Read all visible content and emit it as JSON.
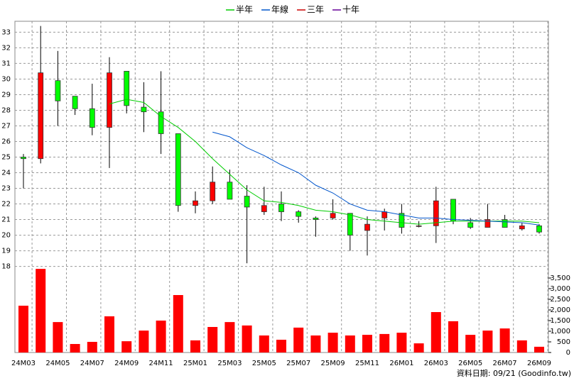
{
  "chart_data": {
    "type": "candlestick",
    "categories": [
      "24M03",
      null,
      "24M05",
      null,
      "24M07",
      null,
      "24M09",
      null,
      "24M11",
      null,
      "25M01",
      null,
      "25M03",
      null,
      "25M05",
      null,
      "25M07",
      null,
      "25M09",
      null,
      "25M11",
      null,
      "26M01",
      null,
      "26M03",
      null,
      "26M05",
      null,
      "26M07",
      null,
      "26M09"
    ],
    "open": [
      25.0,
      24.9,
      29.9,
      28.9,
      28.1,
      26.9,
      30.5,
      28.2,
      27.9,
      26.5,
      21.9,
      22.2,
      23.4,
      22.5,
      21.5,
      22.0,
      21.5,
      21.1,
      21.1,
      21.4,
      20.3,
      21.1,
      21.4,
      20.6,
      20.6,
      22.3,
      20.8,
      20.5,
      21.0,
      20.4,
      20.6
    ],
    "high": [
      25.2,
      33.4,
      31.8,
      28.9,
      29.7,
      31.4,
      30.5,
      29.8,
      30.5,
      26.5,
      22.8,
      24.4,
      24.2,
      23.2,
      23.1,
      22.8,
      21.6,
      21.2,
      22.3,
      21.4,
      21.2,
      21.7,
      22.0,
      20.9,
      23.1,
      22.3,
      21.1,
      22.0,
      21.3,
      20.8,
      20.7
    ],
    "low": [
      23.0,
      24.6,
      27.0,
      27.7,
      26.4,
      24.3,
      27.8,
      26.6,
      25.2,
      21.5,
      21.4,
      22.0,
      22.3,
      18.2,
      21.3,
      20.9,
      20.8,
      19.9,
      21.0,
      19.0,
      18.7,
      20.3,
      20.1,
      20.5,
      19.5,
      20.7,
      20.4,
      20.5,
      20.5,
      20.3,
      20.1
    ],
    "close": [
      24.9,
      30.4,
      28.6,
      28.1,
      26.9,
      30.4,
      28.3,
      27.9,
      26.5,
      21.9,
      22.2,
      23.4,
      22.3,
      21.8,
      21.9,
      21.5,
      21.2,
      21.0,
      21.4,
      20.0,
      20.7,
      21.5,
      20.5,
      20.6,
      22.2,
      20.9,
      20.5,
      21.0,
      20.5,
      20.6,
      20.2
    ],
    "up_color": "#ff0000",
    "down_color": "#00ff00",
    "series": [
      {
        "name": "半年",
        "color": "#00cc00",
        "values": [
          null,
          null,
          null,
          null,
          null,
          28.4,
          28.7,
          28.5,
          27.6,
          26.9,
          26.0,
          24.9,
          23.9,
          22.9,
          22.2,
          22.1,
          21.9,
          21.6,
          21.5,
          21.3,
          21.0,
          20.9,
          20.8,
          20.7,
          20.8,
          20.9,
          20.9,
          20.9,
          20.9,
          20.9,
          20.8
        ]
      },
      {
        "name": "年線",
        "color": "#0055cc",
        "values": [
          null,
          null,
          null,
          null,
          null,
          null,
          null,
          null,
          null,
          null,
          null,
          26.6,
          26.3,
          25.6,
          25.1,
          24.5,
          24.0,
          23.2,
          22.7,
          22.0,
          21.6,
          21.5,
          21.3,
          21.1,
          21.1,
          21.0,
          20.95,
          20.9,
          20.85,
          20.8,
          20.65
        ]
      },
      {
        "name": "三年",
        "color": "#cc0000",
        "values": [
          null,
          null,
          null,
          null,
          null,
          null,
          null,
          null,
          null,
          null,
          null,
          null,
          null,
          null,
          null,
          null,
          null,
          null,
          null,
          null,
          null,
          null,
          null,
          null,
          null,
          null,
          null,
          null,
          null,
          null,
          null
        ]
      },
      {
        "name": "十年",
        "color": "#660099",
        "values": [
          null,
          null,
          null,
          null,
          null,
          null,
          null,
          null,
          null,
          null,
          null,
          null,
          null,
          null,
          null,
          null,
          null,
          null,
          null,
          null,
          null,
          null,
          null,
          null,
          null,
          null,
          null,
          null,
          null,
          null,
          null
        ]
      }
    ],
    "volume": {
      "color": "#ff0000",
      "values": [
        2200,
        3930,
        1430,
        400,
        500,
        1700,
        530,
        1030,
        1500,
        2700,
        570,
        1200,
        1430,
        1270,
        800,
        600,
        1170,
        800,
        930,
        800,
        830,
        870,
        930,
        430,
        1900,
        1470,
        830,
        1030,
        1130,
        570,
        270
      ]
    },
    "ylim": [
      17.8,
      33.7
    ],
    "yticks": [
      18,
      19,
      20,
      21,
      22,
      23,
      24,
      25,
      26,
      27,
      28,
      29,
      30,
      31,
      32,
      33
    ],
    "y2lim": [
      0,
      3900
    ],
    "y2ticks": [
      0,
      500,
      {
        "value": 1000,
        "label": "1,000"
      },
      {
        "value": 1500,
        "label": "1,500"
      },
      {
        "value": 2000,
        "label": "2,000"
      },
      {
        "value": 2500,
        "label": "2,500"
      },
      {
        "value": 3000,
        "label": "3,000"
      },
      {
        "value": 3500,
        "label": "3,500"
      }
    ],
    "grid": true,
    "footer": "資料日期: 09/21  (Goodinfo.tw)"
  }
}
